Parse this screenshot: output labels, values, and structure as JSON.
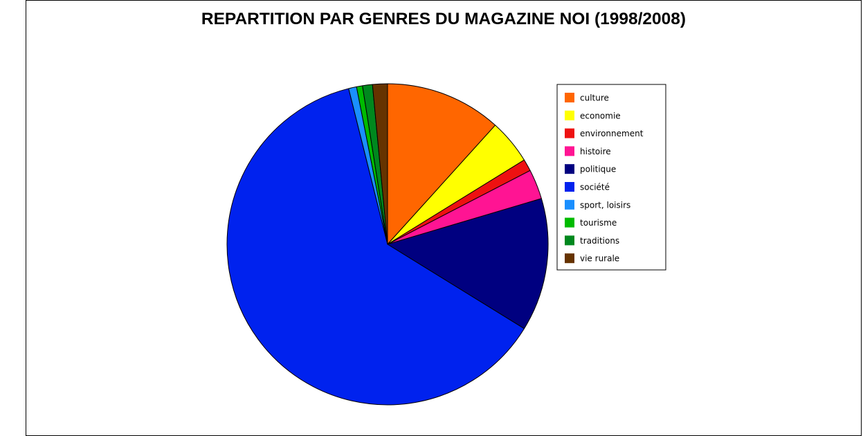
{
  "chart_data": {
    "type": "pie",
    "title": "REPARTITION PAR GENRES DU MAGAZINE NOI (1998/2008)",
    "slices": [
      {
        "label": "culture",
        "value": 11.7,
        "color": "#ff6600"
      },
      {
        "label": "economie",
        "value": 4.5,
        "color": "#ffff00"
      },
      {
        "label": "environnement",
        "value": 1.2,
        "color": "#ee1111"
      },
      {
        "label": "histoire",
        "value": 3.0,
        "color": "#ff1493"
      },
      {
        "label": "politique",
        "value": 13.4,
        "color": "#000080"
      },
      {
        "label": "société",
        "value": 62.3,
        "color": "#0022ee"
      },
      {
        "label": "sport, loisirs",
        "value": 0.8,
        "color": "#1a8fff"
      },
      {
        "label": "tourisme",
        "value": 0.6,
        "color": "#00bb00"
      },
      {
        "label": "traditions",
        "value": 1.0,
        "color": "#00881e"
      },
      {
        "label": "vie rurale",
        "value": 1.5,
        "color": "#663300"
      }
    ],
    "legend_position": "right"
  }
}
